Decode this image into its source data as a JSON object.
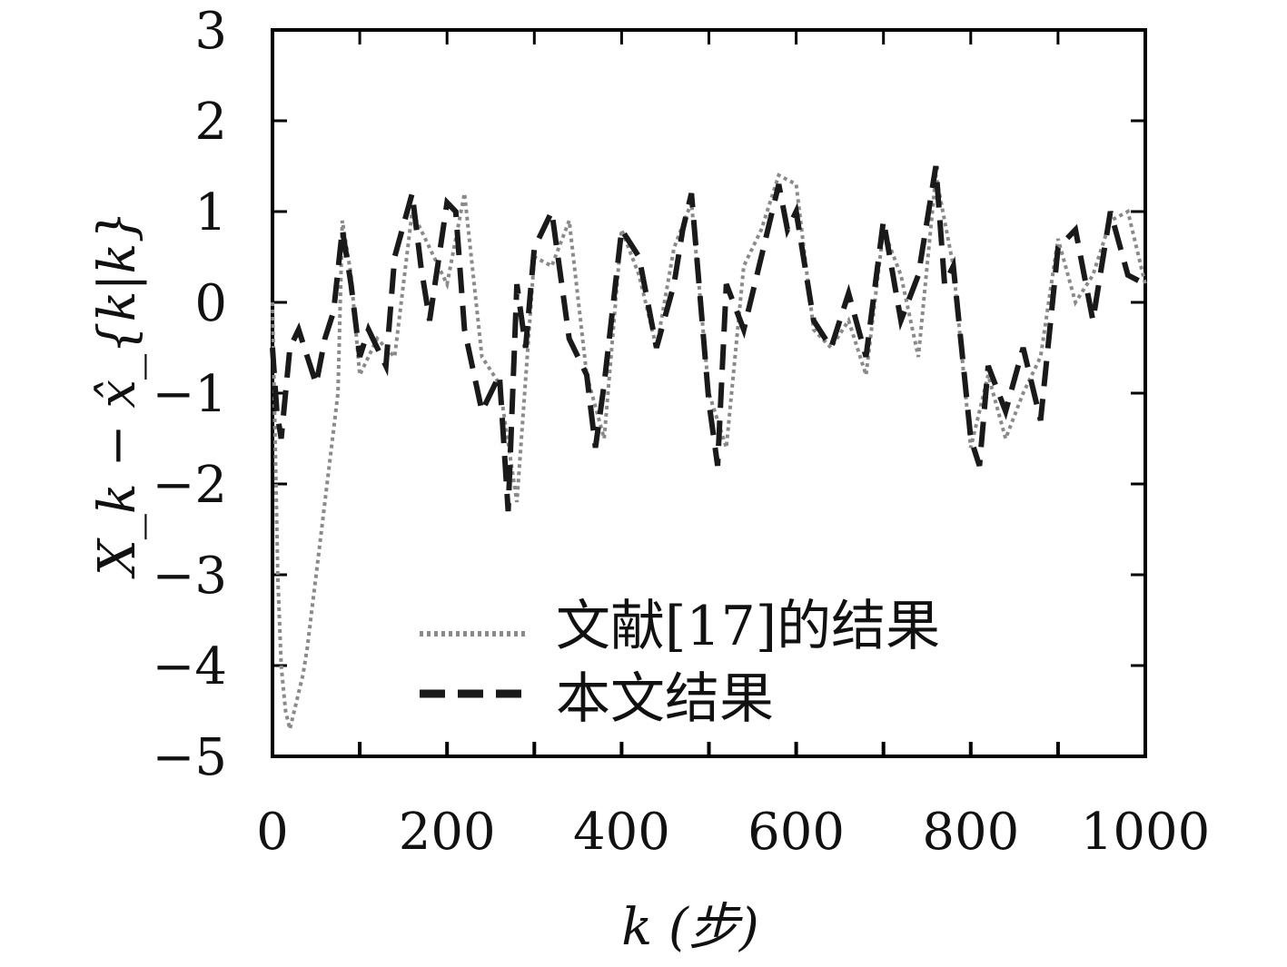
{
  "chart_data": {
    "type": "line",
    "xlabel": "k (步)",
    "ylabel": "X_k − x̂_{k|k}",
    "xlim": [
      0,
      1000
    ],
    "ylim": [
      -5,
      3
    ],
    "xticks": [
      0,
      200,
      400,
      600,
      800,
      1000
    ],
    "yticks": [
      3,
      2,
      1,
      0,
      -1,
      -2,
      -3,
      -4,
      -5
    ],
    "grid": false,
    "legend_position": "bottom-center",
    "series": [
      {
        "name": "文献[17]的结果",
        "style": "dotted",
        "color": "#8a8a8a",
        "x": [
          0,
          3,
          6,
          10,
          15,
          20,
          25,
          30,
          35,
          40,
          45,
          50,
          55,
          60,
          65,
          70,
          75,
          80,
          90,
          100,
          120,
          140,
          160,
          180,
          200,
          220,
          240,
          260,
          280,
          300,
          320,
          340,
          360,
          380,
          400,
          420,
          440,
          460,
          480,
          500,
          520,
          540,
          560,
          580,
          600,
          620,
          640,
          660,
          680,
          700,
          720,
          740,
          760,
          780,
          800,
          820,
          840,
          860,
          880,
          900,
          920,
          940,
          960,
          980,
          1000
        ],
        "y": [
          0.0,
          -1.5,
          -3.0,
          -4.0,
          -4.5,
          -4.7,
          -4.5,
          -4.3,
          -4.1,
          -3.8,
          -3.4,
          -3.0,
          -2.6,
          -2.2,
          -1.8,
          -1.4,
          -1.0,
          0.9,
          0.3,
          -0.8,
          -0.4,
          -0.6,
          1.0,
          0.6,
          0.2,
          1.2,
          -0.6,
          -0.9,
          -2.2,
          0.5,
          0.4,
          0.9,
          -0.8,
          -1.5,
          0.8,
          0.3,
          -0.5,
          0.6,
          1.1,
          -1.0,
          -1.6,
          0.4,
          0.8,
          1.4,
          1.3,
          -0.3,
          -0.5,
          -0.2,
          -0.8,
          0.8,
          0.3,
          -0.6,
          1.4,
          0.4,
          -1.6,
          -0.8,
          -1.5,
          -1.0,
          -0.6,
          0.7,
          0.0,
          0.3,
          0.9,
          1.0,
          0.2
        ]
      },
      {
        "name": "本文结果",
        "style": "dashed",
        "color": "#1a1a1a",
        "x": [
          0,
          5,
          10,
          20,
          30,
          40,
          50,
          60,
          70,
          80,
          90,
          100,
          110,
          120,
          130,
          140,
          160,
          170,
          180,
          200,
          210,
          220,
          240,
          260,
          270,
          280,
          290,
          300,
          320,
          340,
          360,
          370,
          380,
          400,
          420,
          440,
          460,
          470,
          480,
          500,
          510,
          520,
          540,
          560,
          580,
          590,
          600,
          620,
          640,
          660,
          680,
          700,
          720,
          740,
          760,
          770,
          780,
          800,
          810,
          820,
          840,
          860,
          880,
          900,
          920,
          940,
          960,
          980,
          1000
        ],
        "y": [
          -0.5,
          -1.2,
          -1.5,
          -0.5,
          -0.3,
          -0.6,
          -0.9,
          -0.4,
          -0.1,
          0.8,
          0.2,
          -0.6,
          -0.3,
          -0.5,
          -0.7,
          0.5,
          1.2,
          0.4,
          -0.2,
          1.1,
          1.0,
          -0.3,
          -1.2,
          -0.8,
          -2.3,
          0.2,
          -0.5,
          0.6,
          1.0,
          -0.4,
          -0.8,
          -1.6,
          -0.9,
          0.8,
          0.5,
          -0.5,
          0.2,
          0.8,
          1.2,
          -1.1,
          -1.8,
          0.2,
          -0.3,
          0.5,
          1.3,
          0.8,
          1.0,
          -0.2,
          -0.5,
          0.1,
          -0.6,
          0.9,
          -0.2,
          0.3,
          1.5,
          0.2,
          0.4,
          -1.5,
          -1.8,
          -0.7,
          -1.2,
          -0.5,
          -1.3,
          0.6,
          0.8,
          -0.2,
          1.0,
          0.3,
          0.2
        ]
      }
    ]
  }
}
